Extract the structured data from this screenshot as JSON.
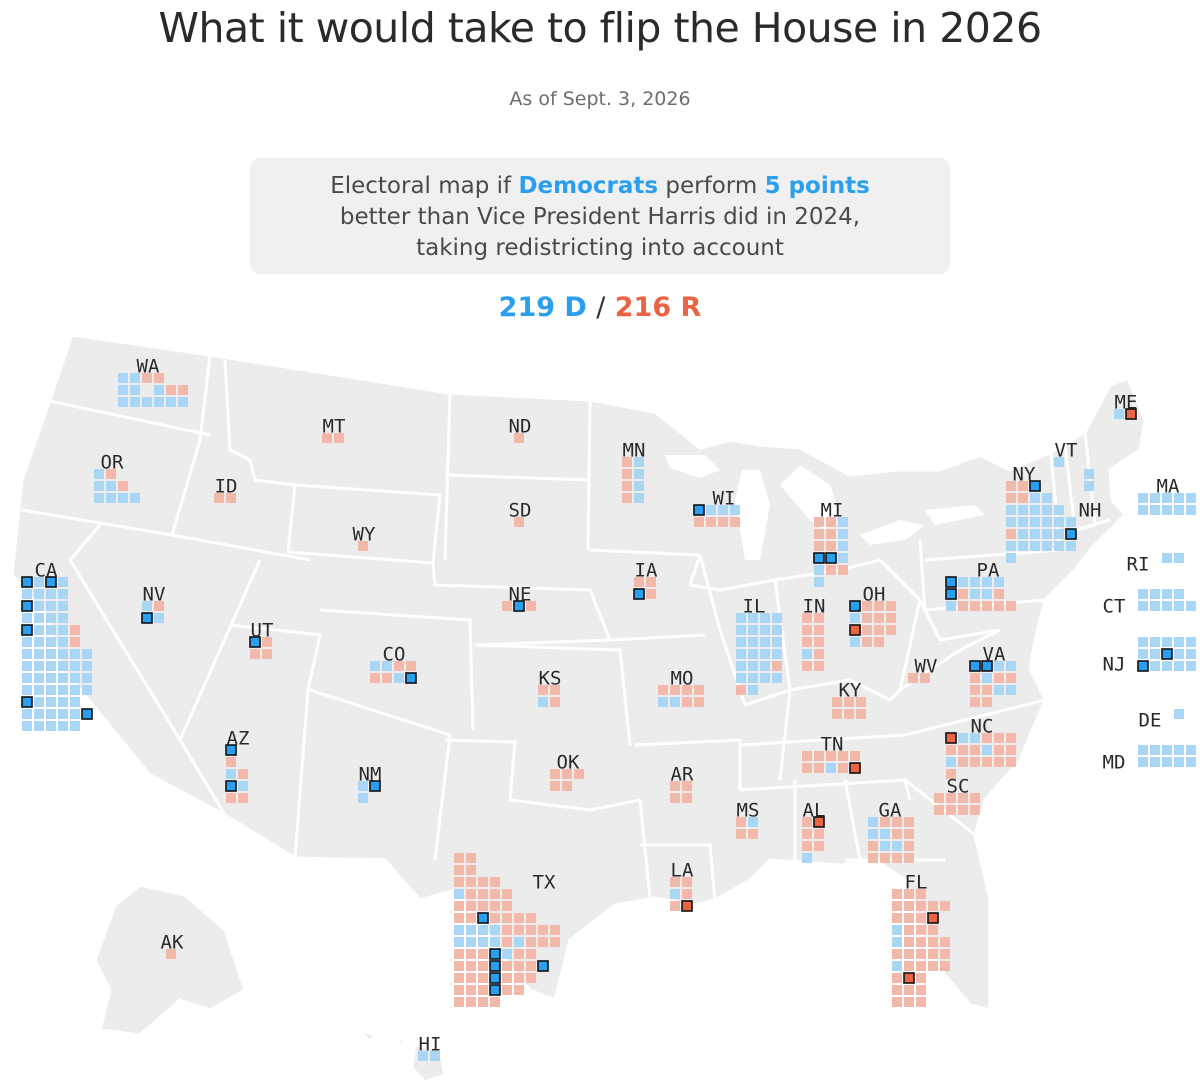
{
  "header": {
    "title": "What it would take to flip the House in 2026",
    "subtitle": "As of Sept. 3, 2026"
  },
  "callout": {
    "text_1": "Electoral map if ",
    "party": "Democrats",
    "text_2": " perform ",
    "points": "5 points",
    "text_3": " better than Vice President Harris did in 2024, taking redistricting into account"
  },
  "tally": {
    "dem": "219 D",
    "sep": "/",
    "rep": "216 R"
  },
  "colors": {
    "dem_lean": "#a9d6f5",
    "rep_lean": "#f2b8aa",
    "dem_flip": "#2b9fef",
    "rep_flip": "#ea6443",
    "land": "#ececec",
    "border": "#ffffff"
  },
  "states": [
    {
      "abbr": "WA",
      "grid": [
        "BBRR",
        "BBFBRR",
        "BBBBBB"
      ]
    },
    {
      "abbr": "OR",
      "grid": [
        "BR",
        "BBR",
        "BBBB"
      ]
    },
    {
      "abbr": "CA",
      "grid": [
        "DBDB",
        "BBBB",
        "DBBB",
        "BBBB",
        "DBBBR",
        "BBBBR",
        "BBBBBB",
        "BBBBBB",
        "BBBBBB",
        "BBBBBB",
        "DBBBB",
        "BBBBBD",
        "BBBBB"
      ]
    },
    {
      "abbr": "NV",
      "grid": [
        "BR",
        "DB"
      ]
    },
    {
      "abbr": "ID",
      "grid": [
        "RR"
      ]
    },
    {
      "abbr": "MT",
      "grid": [
        "RR"
      ]
    },
    {
      "abbr": "WY",
      "grid": [
        "R"
      ]
    },
    {
      "abbr": "UT",
      "grid": [
        "DR",
        "RR"
      ]
    },
    {
      "abbr": "AZ",
      "grid": [
        "D",
        "R",
        "BR",
        "DB",
        "RR"
      ]
    },
    {
      "abbr": "CO",
      "grid": [
        "BBRR",
        "RRBD"
      ]
    },
    {
      "abbr": "NM",
      "grid": [
        "BD",
        "B"
      ]
    },
    {
      "abbr": "ND",
      "grid": [
        "R"
      ]
    },
    {
      "abbr": "SD",
      "grid": [
        "R"
      ]
    },
    {
      "abbr": "NE",
      "grid": [
        "RDR"
      ]
    },
    {
      "abbr": "KS",
      "grid": [
        "RR",
        "BR"
      ]
    },
    {
      "abbr": "OK",
      "grid": [
        "RRR",
        "RR"
      ]
    },
    {
      "abbr": "TX",
      "grid": [
        "RR",
        "RR",
        "RRRR",
        "BRRRR",
        "RRRRR",
        "RRDRRRR",
        "BBBBRRRRR",
        "BBBBRBRRR",
        "RRRDBRR",
        "RRRDRRRD",
        "RRRDRRR",
        "RRRDRR",
        "RRRR"
      ]
    },
    {
      "abbr": "MN",
      "grid": [
        "RB",
        "RB",
        "RB",
        "RB"
      ]
    },
    {
      "abbr": "IA",
      "grid": [
        "RR",
        "DR"
      ]
    },
    {
      "abbr": "MO",
      "grid": [
        "RRRR",
        "BBRR"
      ]
    },
    {
      "abbr": "AR",
      "grid": [
        "RR",
        "RR"
      ]
    },
    {
      "abbr": "LA",
      "grid": [
        "RR",
        "BR",
        "RX"
      ]
    },
    {
      "abbr": "WI",
      "grid": [
        "DBBB",
        "RRRR"
      ]
    },
    {
      "abbr": "IL",
      "grid": [
        "BBBB",
        "BBBB",
        "BBBB",
        "BBBB",
        "BBBR",
        "BBBB",
        "RB"
      ]
    },
    {
      "abbr": "MI",
      "grid": [
        "RRB",
        "RRB",
        "RRB",
        "DDB",
        "BRR",
        "B"
      ]
    },
    {
      "abbr": "IN",
      "grid": [
        "RR",
        "RR",
        "RR",
        "BR",
        "RR"
      ]
    },
    {
      "abbr": "OH",
      "grid": [
        "DRRR",
        "BRRR",
        "XRRR",
        "BRR"
      ]
    },
    {
      "abbr": "KY",
      "grid": [
        "RRR",
        "RRR"
      ]
    },
    {
      "abbr": "TN",
      "grid": [
        "RRRRR",
        "RRBRX"
      ]
    },
    {
      "abbr": "MS",
      "grid": [
        "RB",
        "RR"
      ]
    },
    {
      "abbr": "AL",
      "grid": [
        "RX",
        "RR",
        "RR",
        "B"
      ]
    },
    {
      "abbr": "GA",
      "grid": [
        "BRRR",
        "BBRR",
        "RBBR",
        "RRRR"
      ]
    },
    {
      "abbr": "FL",
      "grid": [
        "RRR",
        "RRRRR",
        "RRRX",
        "BRRR",
        "BRRRR",
        "RRRRR",
        "BRRRR",
        "RXR",
        "RRR",
        "RRR"
      ]
    },
    {
      "abbr": "SC",
      "grid": [
        "RRRR",
        "RRRR"
      ]
    },
    {
      "abbr": "NC",
      "grid": [
        "XBBRRR",
        "RRRBRR",
        "BRRRRR",
        "R"
      ]
    },
    {
      "abbr": "VA",
      "grid": [
        "DDBB",
        "RBRR",
        "RRBB",
        "RR"
      ]
    },
    {
      "abbr": "WV",
      "grid": [
        "RR"
      ]
    },
    {
      "abbr": "PA",
      "grid": [
        "DBBBB",
        "DRBBR",
        "BRRRRR"
      ]
    },
    {
      "abbr": "NY",
      "grid": [
        "RRD",
        "RRBB",
        "BBBBB",
        "BBBBBB",
        "RBBBBD",
        "BBBBBB",
        "B"
      ]
    },
    {
      "abbr": "ME",
      "grid": [
        "BX"
      ]
    },
    {
      "abbr": "VT",
      "grid": [
        "B"
      ]
    },
    {
      "abbr": "NH",
      "grid": [
        "B",
        "B"
      ]
    },
    {
      "abbr": "MA",
      "grid": [
        "BBBBB",
        "BBBBB"
      ]
    },
    {
      "abbr": "RI",
      "grid": [
        "BB"
      ]
    },
    {
      "abbr": "CT",
      "grid": [
        "BBBB",
        "BBBBB"
      ]
    },
    {
      "abbr": "NJ",
      "grid": [
        "BBBBB",
        "BBDBB",
        "DBBBB"
      ]
    },
    {
      "abbr": "DE",
      "grid": [
        "B"
      ]
    },
    {
      "abbr": "MD",
      "grid": [
        "BBBBB",
        "BBBBB"
      ]
    },
    {
      "abbr": "AK",
      "grid": [
        "R"
      ]
    },
    {
      "abbr": "HI",
      "grid": [
        "BB"
      ]
    }
  ]
}
